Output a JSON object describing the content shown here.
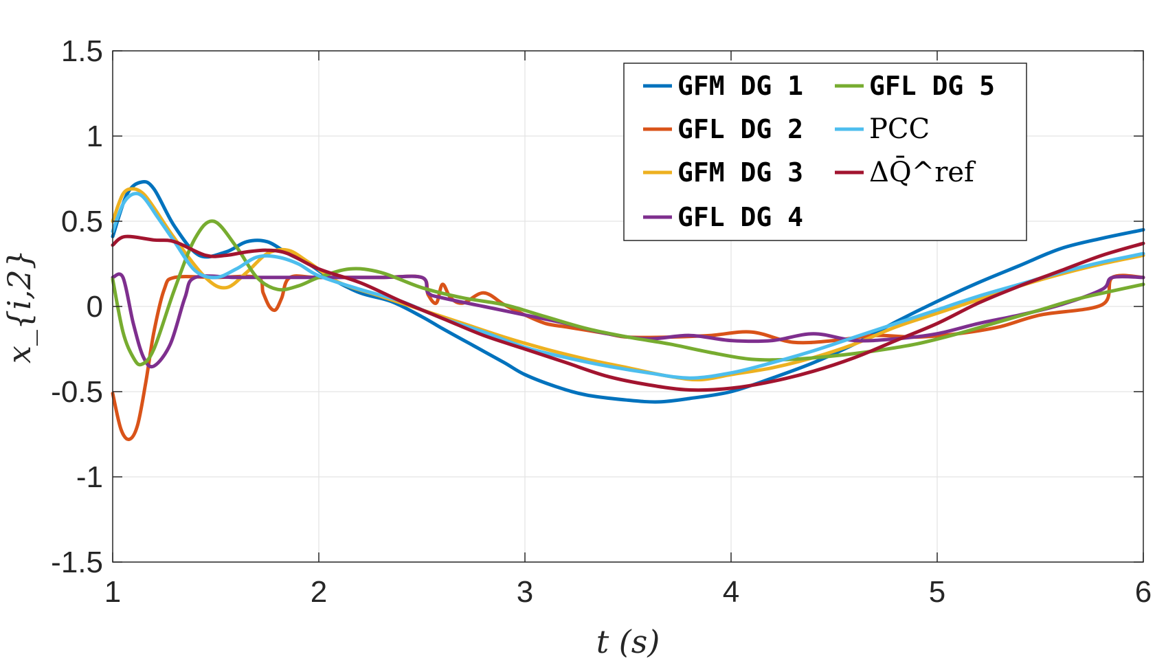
{
  "chart_data": {
    "type": "line",
    "title": "",
    "xlabel": "t (s)",
    "ylabel": "x_{i,2}",
    "xlim": [
      1,
      6
    ],
    "ylim": [
      -1.5,
      1.5
    ],
    "xticks": [
      "1",
      "2",
      "3",
      "4",
      "5",
      "6"
    ],
    "yticks": [
      "1.5",
      "1",
      "0.5",
      "0",
      "-0.5",
      "-1",
      "-1.5"
    ],
    "grid": true,
    "legend_position": "top-right",
    "series": [
      {
        "name": "GFM DG 1",
        "color": "#0072BD",
        "x": [
          1.0,
          1.07,
          1.14,
          1.2,
          1.3,
          1.42,
          1.55,
          1.65,
          1.75,
          1.85,
          1.95,
          2.05,
          2.2,
          2.35,
          2.5,
          2.6,
          2.75,
          2.9,
          3.0,
          3.15,
          3.3,
          3.5,
          3.65,
          3.8,
          4.0,
          4.2,
          4.4,
          4.6,
          4.8,
          5.0,
          5.2,
          5.4,
          5.6,
          5.8,
          6.0
        ],
        "values": [
          0.41,
          0.66,
          0.73,
          0.69,
          0.47,
          0.3,
          0.32,
          0.38,
          0.38,
          0.31,
          0.25,
          0.17,
          0.08,
          0.03,
          -0.06,
          -0.13,
          -0.23,
          -0.33,
          -0.4,
          -0.47,
          -0.52,
          -0.55,
          -0.56,
          -0.54,
          -0.5,
          -0.42,
          -0.33,
          -0.22,
          -0.09,
          0.03,
          0.14,
          0.24,
          0.34,
          0.4,
          0.45
        ]
      },
      {
        "name": "GFL DG 2",
        "color": "#D95319",
        "x": [
          1.0,
          1.04,
          1.08,
          1.12,
          1.16,
          1.2,
          1.25,
          1.3,
          1.5,
          1.7,
          1.73,
          1.76,
          1.79,
          1.82,
          1.86,
          2.0,
          2.3,
          2.5,
          2.53,
          2.57,
          2.6,
          2.64,
          2.7,
          2.8,
          2.9,
          3.0,
          3.1,
          3.2,
          3.3,
          3.4,
          3.5,
          3.7,
          3.9,
          4.1,
          4.3,
          4.5,
          4.7,
          4.9,
          5.1,
          5.3,
          5.5,
          5.8,
          5.85,
          6.0
        ],
        "values": [
          -0.51,
          -0.72,
          -0.78,
          -0.7,
          -0.45,
          -0.15,
          0.1,
          0.17,
          0.17,
          0.17,
          0.08,
          0.0,
          -0.02,
          0.05,
          0.17,
          0.17,
          0.17,
          0.17,
          0.07,
          0.02,
          0.13,
          0.05,
          0.02,
          0.08,
          0.01,
          -0.05,
          -0.1,
          -0.12,
          -0.14,
          -0.16,
          -0.18,
          -0.18,
          -0.17,
          -0.15,
          -0.21,
          -0.2,
          -0.17,
          -0.18,
          -0.16,
          -0.12,
          -0.05,
          0.01,
          0.17,
          0.17
        ]
      },
      {
        "name": "GFM DG 3",
        "color": "#EDB120",
        "x": [
          1.0,
          1.05,
          1.1,
          1.15,
          1.2,
          1.3,
          1.45,
          1.55,
          1.65,
          1.75,
          1.85,
          1.95,
          2.1,
          2.3,
          2.5,
          2.7,
          2.9,
          3.1,
          3.3,
          3.5,
          3.7,
          3.85,
          4.0,
          4.2,
          4.4,
          4.6,
          4.8,
          5.0,
          5.2,
          5.4,
          5.6,
          5.8,
          6.0
        ],
        "values": [
          0.5,
          0.66,
          0.69,
          0.66,
          0.58,
          0.4,
          0.17,
          0.11,
          0.2,
          0.31,
          0.33,
          0.26,
          0.14,
          0.06,
          -0.02,
          -0.1,
          -0.18,
          -0.25,
          -0.31,
          -0.36,
          -0.41,
          -0.43,
          -0.4,
          -0.36,
          -0.3,
          -0.22,
          -0.12,
          -0.04,
          0.04,
          0.12,
          0.19,
          0.25,
          0.3
        ]
      },
      {
        "name": "GFL DG 4",
        "color": "#7E2F8E",
        "x": [
          1.0,
          1.05,
          1.1,
          1.15,
          1.2,
          1.28,
          1.35,
          1.4,
          1.6,
          1.8,
          2.0,
          2.3,
          2.5,
          2.53,
          2.6,
          2.8,
          3.0,
          3.2,
          3.4,
          3.6,
          3.8,
          4.0,
          4.2,
          4.4,
          4.6,
          4.8,
          5.0,
          5.2,
          5.4,
          5.6,
          5.8,
          5.85,
          6.0
        ],
        "values": [
          0.17,
          0.17,
          -0.1,
          -0.3,
          -0.35,
          -0.22,
          0.05,
          0.17,
          0.17,
          0.17,
          0.17,
          0.17,
          0.17,
          0.08,
          0.05,
          0.0,
          -0.05,
          -0.1,
          -0.16,
          -0.19,
          -0.17,
          -0.2,
          -0.2,
          -0.16,
          -0.2,
          -0.19,
          -0.16,
          -0.1,
          -0.05,
          0.01,
          0.1,
          0.17,
          0.17
        ]
      },
      {
        "name": "GFL DG 5",
        "color": "#77AC30",
        "x": [
          1.0,
          1.05,
          1.1,
          1.14,
          1.2,
          1.3,
          1.4,
          1.49,
          1.6,
          1.7,
          1.8,
          1.9,
          2.0,
          2.15,
          2.3,
          2.5,
          2.7,
          2.9,
          3.1,
          3.3,
          3.5,
          3.7,
          3.9,
          4.1,
          4.3,
          4.5,
          4.7,
          4.9,
          5.1,
          5.3,
          5.5,
          5.7,
          6.0
        ],
        "values": [
          0.16,
          -0.15,
          -0.3,
          -0.34,
          -0.25,
          0.1,
          0.4,
          0.5,
          0.35,
          0.17,
          0.1,
          0.12,
          0.17,
          0.22,
          0.2,
          0.11,
          0.05,
          0.01,
          -0.06,
          -0.13,
          -0.18,
          -0.22,
          -0.27,
          -0.31,
          -0.31,
          -0.29,
          -0.26,
          -0.22,
          -0.16,
          -0.09,
          -0.02,
          0.05,
          0.13
        ]
      },
      {
        "name": "PCC",
        "color": "#4DBEEE",
        "x": [
          1.0,
          1.05,
          1.1,
          1.15,
          1.22,
          1.3,
          1.4,
          1.5,
          1.6,
          1.7,
          1.8,
          1.9,
          2.0,
          2.2,
          2.4,
          2.6,
          2.8,
          3.0,
          3.2,
          3.4,
          3.6,
          3.8,
          4.0,
          4.2,
          4.4,
          4.6,
          4.8,
          5.0,
          5.2,
          5.4,
          5.6,
          5.8,
          6.0
        ],
        "values": [
          0.44,
          0.6,
          0.66,
          0.64,
          0.52,
          0.38,
          0.21,
          0.17,
          0.22,
          0.29,
          0.29,
          0.25,
          0.18,
          0.1,
          0.03,
          -0.07,
          -0.15,
          -0.24,
          -0.3,
          -0.35,
          -0.39,
          -0.42,
          -0.39,
          -0.33,
          -0.26,
          -0.18,
          -0.1,
          -0.02,
          0.06,
          0.13,
          0.2,
          0.26,
          0.31
        ]
      },
      {
        "name": "ΔQ̄^ref",
        "color": "#A2142F",
        "x": [
          1.0,
          1.06,
          1.2,
          1.3,
          1.45,
          1.55,
          1.65,
          1.75,
          1.85,
          2.0,
          2.2,
          2.4,
          2.6,
          2.8,
          3.0,
          3.2,
          3.4,
          3.6,
          3.8,
          4.0,
          4.2,
          4.4,
          4.6,
          4.8,
          5.0,
          5.2,
          5.4,
          5.6,
          5.8,
          6.0
        ],
        "values": [
          0.36,
          0.41,
          0.39,
          0.38,
          0.3,
          0.3,
          0.32,
          0.33,
          0.31,
          0.22,
          0.14,
          0.03,
          -0.07,
          -0.17,
          -0.25,
          -0.33,
          -0.41,
          -0.46,
          -0.49,
          -0.48,
          -0.44,
          -0.38,
          -0.3,
          -0.2,
          -0.1,
          0.02,
          0.12,
          0.21,
          0.3,
          0.37
        ]
      }
    ]
  }
}
